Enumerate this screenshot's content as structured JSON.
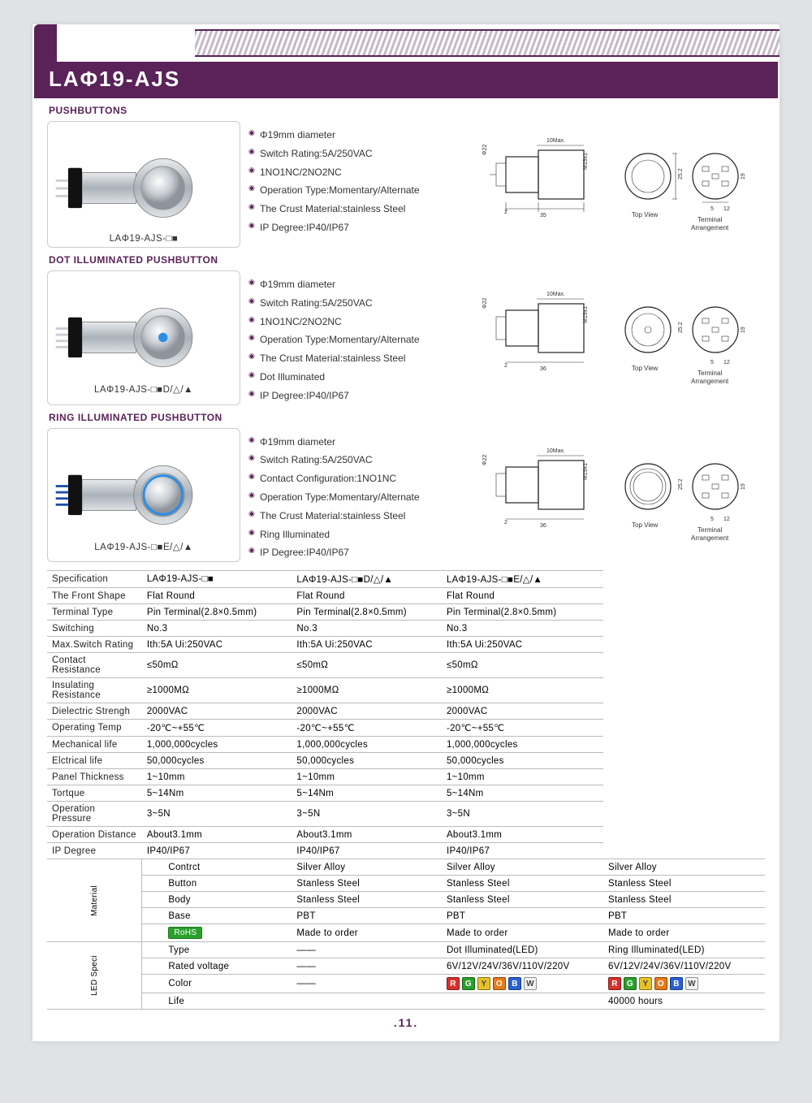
{
  "header": {
    "title": "LAΦ19-AJS",
    "page_number": ".11."
  },
  "section1": {
    "label": "PUSHBUTTONS",
    "caption": "LAΦ19-AJS-□■",
    "bullets": [
      "Φ19mm diameter",
      "Switch Rating:5A/250VAC",
      "1NO1NC/2NO2NC",
      "Operation Type:Momentary/Alternate",
      "The Crust Material:stainless Steel",
      "IP Degree:IP40/IP67"
    ],
    "diagram": {
      "overall_max": "10Max.",
      "dia22": "Φ22",
      "m19": "M19x1",
      "d25": "25.2",
      "d19": "19",
      "h2": "2",
      "l35": "35",
      "t5": "5",
      "t12": "12",
      "top_view": "Top View",
      "terminal": "Terminal",
      "arrangement": "Arrangement"
    }
  },
  "section2": {
    "label": "DOT ILLUMINATED PUSHBUTTON",
    "caption": "LAΦ19-AJS-□■D/△/▲",
    "bullets": [
      "Φ19mm diameter",
      "Switch Rating:5A/250VAC",
      "1NO1NC/2NO2NC",
      "Operation Type:Momentary/Alternate",
      "The Crust Material:stainless Steel",
      "Dot Illuminated",
      "IP Degree:IP40/IP67"
    ],
    "diagram": {
      "overall_max": "10Max.",
      "dia22": "Φ22",
      "m19": "M19x1",
      "d25": "25.2",
      "d19": "19",
      "h2": "2",
      "l36": "36",
      "t5": "5",
      "t12": "12",
      "top_view": "Top View",
      "terminal": "Terminal",
      "arrangement": "Arrangement"
    }
  },
  "section3": {
    "label": "RING ILLUMINATED PUSHBUTTON",
    "caption": "LAΦ19-AJS-□■E/△/▲",
    "bullets": [
      "Φ19mm diameter",
      "Switch Rating:5A/250VAC",
      "Contact Configuration:1NO1NC",
      "Operation Type:Momentary/Alternate",
      "The Crust Material:stainless Steel",
      "Ring Illuminated",
      "IP Degree:IP40/IP67"
    ],
    "diagram": {
      "overall_max": "10Max.",
      "dia22": "Φ22",
      "m19": "M19x1",
      "d25": "25.2",
      "d19": "19",
      "h2": "2",
      "l36": "36",
      "t5": "5",
      "t12": "12",
      "top_view": "Top View",
      "terminal": "Terminal",
      "arrangement": "Arrangement"
    }
  },
  "table": {
    "headers": [
      "LAΦ19-AJS-□■",
      "LAΦ19-AJS-□■D/△/▲",
      "LAΦ19-AJS-□■E/△/▲"
    ],
    "rows": [
      {
        "label": "Specification",
        "v": [
          "LAΦ19-AJS-□■",
          "LAΦ19-AJS-□■D/△/▲",
          "LAΦ19-AJS-□■E/△/▲"
        ]
      },
      {
        "label": "The Front Shape",
        "v": [
          "Flat Round",
          "Flat Round",
          "Flat Round"
        ]
      },
      {
        "label": "Terminal Type",
        "v": [
          "Pin Terminal(2.8×0.5mm)",
          "Pin Terminal(2.8×0.5mm)",
          "Pin Terminal(2.8×0.5mm)"
        ]
      },
      {
        "label": "Switching",
        "v": [
          "No.3",
          "No.3",
          "No.3"
        ]
      },
      {
        "label": "Max.Switch Rating",
        "v": [
          "Ith:5A Ui:250VAC",
          "Ith:5A Ui:250VAC",
          "Ith:5A Ui:250VAC"
        ]
      },
      {
        "label": "Contact Resistance",
        "v": [
          "≤50mΩ",
          "≤50mΩ",
          "≤50mΩ"
        ]
      },
      {
        "label": "Insulating Resistance",
        "v": [
          "≥1000MΩ",
          "≥1000MΩ",
          "≥1000MΩ"
        ]
      },
      {
        "label": "Dielectric Strengh",
        "v": [
          "2000VAC",
          "2000VAC",
          "2000VAC"
        ]
      },
      {
        "label": "Operating Temp",
        "v": [
          "-20℃~+55℃",
          "-20℃~+55℃",
          "-20℃~+55℃"
        ]
      },
      {
        "label": "Mechanical life",
        "v": [
          "1,000,000cycles",
          "1,000,000cycles",
          "1,000,000cycles"
        ]
      },
      {
        "label": "Elctrical life",
        "v": [
          "50,000cycles",
          "50,000cycles",
          "50,000cycles"
        ]
      },
      {
        "label": "Panel Thickness",
        "v": [
          "1~10mm",
          "1~10mm",
          "1~10mm"
        ]
      },
      {
        "label": "Tortque",
        "v": [
          "5~14Nm",
          "5~14Nm",
          "5~14Nm"
        ]
      },
      {
        "label": "Operation Pressure",
        "v": [
          "3~5N",
          "3~5N",
          "3~5N"
        ]
      },
      {
        "label": "Operation Distance",
        "v": [
          "About3.1mm",
          "About3.1mm",
          "About3.1mm"
        ]
      },
      {
        "label": "IP Degree",
        "v": [
          "IP40/IP67",
          "IP40/IP67",
          "IP40/IP67"
        ]
      }
    ],
    "material_header": "Material",
    "material": [
      {
        "label": "Contrct",
        "v": [
          "Silver Alloy",
          "Silver Alloy",
          "Silver Alloy"
        ]
      },
      {
        "label": "Button",
        "v": [
          "Stanless Steel",
          "Stanless Steel",
          "Stanless Steel"
        ]
      },
      {
        "label": "Body",
        "v": [
          "Stanless Steel",
          "Stanless Steel",
          "Stanless Steel"
        ]
      },
      {
        "label": "Base",
        "v": [
          "PBT",
          "PBT",
          "PBT"
        ]
      },
      {
        "label": "RoHS",
        "rohs": true,
        "v": [
          "Made to order",
          "Made to order",
          "Made to order"
        ]
      }
    ],
    "led_header": "LED Speci",
    "led": [
      {
        "label": "Type",
        "v": [
          "——",
          "Dot Illuminated(LED)",
          "Ring Illuminated(LED)"
        ]
      },
      {
        "label": "Rated voltage",
        "v": [
          "——",
          "6V/12V/24V/36V/110V/220V",
          "6V/12V/24V/36V/110V/220V"
        ]
      },
      {
        "label": "Color",
        "v": [
          "——",
          "SW",
          "SW"
        ]
      },
      {
        "label": "Life",
        "v": [
          "",
          "",
          "40000 hours"
        ]
      }
    ],
    "color_swatches": [
      {
        "l": "R",
        "c": "#d8302a"
      },
      {
        "l": "G",
        "c": "#2aa02a"
      },
      {
        "l": "Y",
        "c": "#e6c22a",
        "fg": "#444"
      },
      {
        "l": "O",
        "c": "#e67a1a"
      },
      {
        "l": "B",
        "c": "#2a5fd6"
      },
      {
        "l": "W",
        "c": "#f2f2f2",
        "fg": "#444"
      }
    ]
  },
  "colors": {
    "brand": "#5a2258",
    "border": "#bbbbbb",
    "stripe": "#c7b9c6",
    "steel1": "#f4f4f4",
    "steel2": "#9aa1a8",
    "steel3": "#d7dadd",
    "black": "#111",
    "blue_led": "#2a8de6",
    "ring_led": "#2a8de6"
  }
}
